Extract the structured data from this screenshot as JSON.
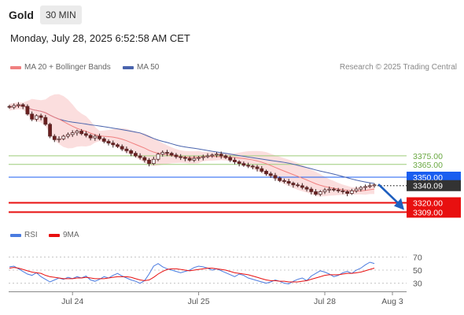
{
  "header": {
    "instrument": "Gold",
    "timeframe": "30 MIN",
    "datetime": "Monday, July 28, 2025 6:52:58 AM CET",
    "copyright": "Research © 2025 Trading Central"
  },
  "legend": {
    "ma20_label": "MA 20 + Bollinger Bands",
    "ma50_label": "MA 50",
    "rsi_label": "RSI",
    "rsi_ma_label": "9MA"
  },
  "colors": {
    "ma20": "#f08080",
    "band_fill": "#fbdada",
    "ma50": "#4a64ad",
    "resistance": "#9ccc78",
    "pivot": "#1a5ef0",
    "support": "#e81010",
    "price_badge": "#333333",
    "candle_up": "#5a3d3d",
    "rsi": "#4a7be0",
    "rsi_ma": "#e81010",
    "arrow": "#1f5fbf"
  },
  "chart_data": [
    {
      "type": "candlestick",
      "title": "Gold",
      "timeframe": "30 MIN",
      "ylim": [
        3290,
        3470
      ],
      "x_tick_labels": [
        "Jul 24",
        "Jul 25",
        "Jul 28",
        "Aug 3"
      ],
      "indicators": [
        "MA 20 + Bollinger Bands",
        "MA 50"
      ],
      "close_series": [
        3432,
        3434,
        3435,
        3433,
        3424,
        3418,
        3422,
        3420,
        3412,
        3398,
        3394,
        3395,
        3398,
        3400,
        3402,
        3404,
        3401,
        3399,
        3396,
        3398,
        3395,
        3392,
        3390,
        3388,
        3386,
        3383,
        3381,
        3378,
        3375,
        3373,
        3370,
        3366,
        3371,
        3377,
        3379,
        3378,
        3376,
        3374,
        3373,
        3372,
        3370,
        3372,
        3373,
        3374,
        3375,
        3376,
        3377,
        3375,
        3373,
        3370,
        3368,
        3366,
        3364,
        3363,
        3362,
        3360,
        3357,
        3354,
        3352,
        3349,
        3346,
        3345,
        3343,
        3341,
        3340,
        3338,
        3336,
        3333,
        3330,
        3333,
        3335,
        3336,
        3335,
        3334,
        3333,
        3331,
        3334,
        3336,
        3338,
        3339,
        3340,
        3341
      ],
      "levels": [
        {
          "label": "3375.00",
          "value": 3375.0,
          "role": "resistance"
        },
        {
          "label": "3365.00",
          "value": 3365.0,
          "role": "resistance"
        },
        {
          "label": "3350.00",
          "value": 3350.0,
          "role": "pivot"
        },
        {
          "label": "3340.09",
          "value": 3340.09,
          "role": "last"
        },
        {
          "label": "3320.00",
          "value": 3320.0,
          "role": "support"
        },
        {
          "label": "3309.00",
          "value": 3309.0,
          "role": "support"
        }
      ],
      "forecast": {
        "from": 3341,
        "to": 3318,
        "direction": "down"
      }
    },
    {
      "type": "line",
      "title": "RSI",
      "ylim": [
        20,
        80
      ],
      "y_tick_labels": [
        "70",
        "50",
        "30"
      ],
      "series": [
        {
          "name": "RSI",
          "values": [
            55,
            56,
            52,
            48,
            44,
            42,
            46,
            40,
            36,
            32,
            35,
            38,
            36,
            39,
            37,
            40,
            38,
            41,
            35,
            33,
            36,
            40,
            38,
            42,
            45,
            41,
            38,
            35,
            33,
            30,
            34,
            44,
            56,
            60,
            55,
            52,
            50,
            48,
            46,
            48,
            50,
            54,
            56,
            55,
            53,
            50,
            52,
            49,
            46,
            43,
            40,
            44,
            42,
            38,
            36,
            34,
            32,
            30,
            32,
            35,
            33,
            30,
            29,
            33,
            36,
            38,
            34,
            41,
            45,
            49,
            47,
            44,
            40,
            42,
            46,
            48,
            45,
            50,
            53,
            58,
            62,
            60
          ]
        },
        {
          "name": "9MA",
          "values": [
            53,
            54,
            53,
            51,
            49,
            47,
            46,
            45,
            42,
            40,
            39,
            38,
            37,
            37,
            37,
            38,
            38,
            39,
            38,
            37,
            37,
            37,
            38,
            39,
            40,
            40,
            40,
            39,
            37,
            35,
            34,
            35,
            39,
            44,
            48,
            51,
            52,
            52,
            51,
            50,
            49,
            50,
            51,
            52,
            53,
            53,
            52,
            51,
            50,
            48,
            46,
            45,
            44,
            43,
            41,
            39,
            37,
            35,
            34,
            34,
            33,
            33,
            32,
            32,
            32,
            33,
            34,
            36,
            38,
            40,
            42,
            43,
            43,
            43,
            44,
            45,
            45,
            46,
            47,
            49,
            51,
            53
          ]
        }
      ]
    }
  ]
}
